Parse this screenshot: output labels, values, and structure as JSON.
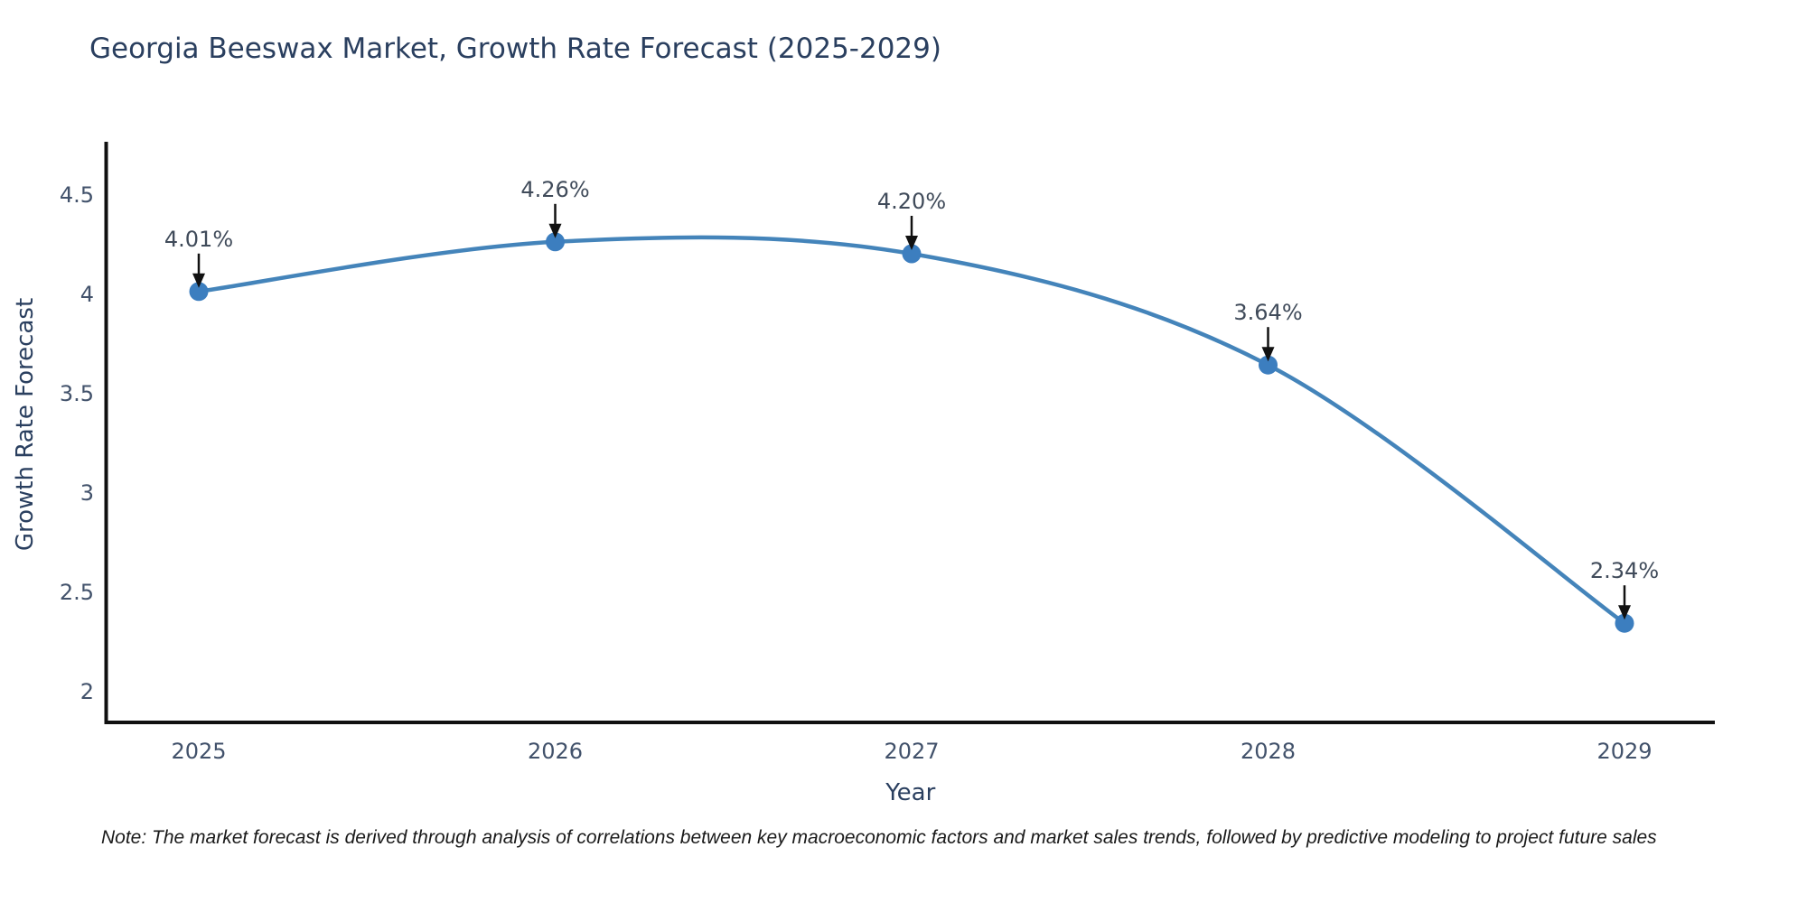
{
  "title": "Georgia Beeswax Market, Growth Rate Forecast (2025-2029)",
  "note": "Note: The market forecast is derived through analysis of correlations between key macroeconomic factors and market sales trends, followed by predictive modeling to project future sales",
  "chart_data": {
    "type": "line",
    "line_shape": "spline",
    "grid": false,
    "legend_position": "none",
    "title": "Georgia Beeswax Market, Growth Rate Forecast (2025-2029)",
    "xlabel": "Year",
    "ylabel": "Growth Rate Forecast",
    "x": [
      2025,
      2026,
      2027,
      2028,
      2029
    ],
    "values": [
      4.01,
      4.26,
      4.2,
      3.64,
      2.34
    ],
    "point_labels": [
      "4.01%",
      "4.26%",
      "4.20%",
      "3.64%",
      "2.34%"
    ],
    "x_tick_labels": [
      "2025",
      "2026",
      "2027",
      "2028",
      "2029"
    ],
    "y_tick_labels": [
      "4.5",
      "4",
      "3.5",
      "3",
      "2.5",
      "2"
    ],
    "y_tick_values": [
      4.5,
      4.0,
      3.5,
      3.0,
      2.5,
      2.0
    ],
    "ylim": [
      1.84,
      4.76
    ],
    "xlim": [
      2024.74,
      2029.26
    ]
  },
  "colors": {
    "background": "#ffffff",
    "line": "#4484ba",
    "marker": "#3c7ebf",
    "axis": "#111111",
    "arrow": "#111111",
    "title_text": "#2a3f5f",
    "axis_title_text": "#2a3f5f",
    "tick_text": "#42526b",
    "annotation_text": "#404b5a",
    "note_text": "#1a1a1a"
  }
}
